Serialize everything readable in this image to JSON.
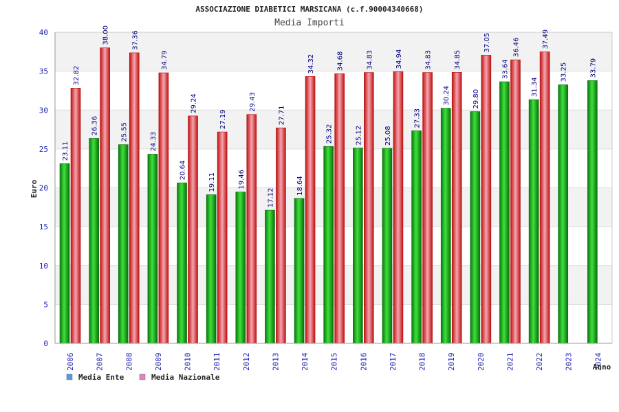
{
  "chart_data": {
    "type": "bar",
    "title": "ASSOCIAZIONE DIABETICI MARSICANA (c.f.90004340668)",
    "subtitle": "Media Importi",
    "ylabel": "Euro",
    "xlabel": "Anno",
    "ylim": [
      0,
      40
    ],
    "yticks": [
      0,
      5,
      10,
      15,
      20,
      25,
      30,
      35,
      40
    ],
    "grid": true,
    "legend_position": "bottom-left",
    "categories": [
      "2006",
      "2007",
      "2008",
      "2009",
      "2010",
      "2011",
      "2012",
      "2013",
      "2014",
      "2015",
      "2016",
      "2017",
      "2018",
      "2019",
      "2020",
      "2021",
      "2022",
      "2023",
      "2024"
    ],
    "series": [
      {
        "name": "Media Ente",
        "color": "#11aa11",
        "legend_color": "#5599ee",
        "values": [
          23.11,
          26.36,
          25.55,
          24.33,
          20.64,
          19.11,
          19.46,
          17.12,
          18.64,
          25.32,
          25.12,
          25.08,
          27.33,
          30.24,
          29.8,
          33.64,
          31.34,
          33.25,
          33.79
        ],
        "labels": [
          "23.11",
          "26.36",
          "25.55",
          "24.33",
          "20.64",
          "19.11",
          "19.46",
          "17.12",
          "18.64",
          "25.32",
          "25.12",
          "25.08",
          "27.33",
          "30.24",
          "29.80",
          "33.64",
          "31.34",
          "33.25",
          "33.79"
        ]
      },
      {
        "name": "Media Nazionale",
        "color": "#ee2222",
        "legend_color": "#dd88bb",
        "values": [
          32.82,
          38.0,
          37.36,
          34.79,
          29.24,
          27.19,
          29.43,
          27.71,
          34.32,
          34.68,
          34.83,
          34.94,
          34.83,
          34.85,
          37.05,
          36.46,
          37.49,
          null,
          null
        ],
        "labels": [
          "32.82",
          "38.00",
          "37.36",
          "34.79",
          "29.24",
          "27.19",
          "29.43",
          "27.71",
          "34.32",
          "34.68",
          "34.83",
          "34.94",
          "34.83",
          "34.85",
          "37.05",
          "36.46",
          "37.49",
          "",
          ""
        ]
      }
    ]
  }
}
